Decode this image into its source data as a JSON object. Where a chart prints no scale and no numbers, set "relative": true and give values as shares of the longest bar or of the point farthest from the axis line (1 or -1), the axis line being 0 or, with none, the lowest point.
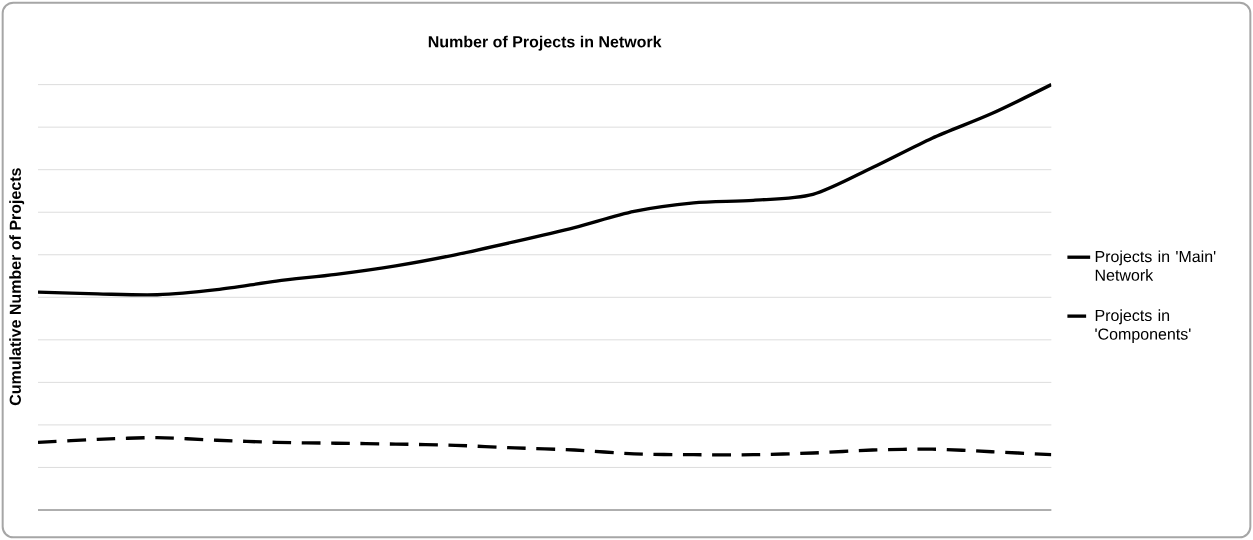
{
  "chart_data": {
    "type": "line",
    "title": "Number of Projects in Network",
    "ylabel": "Cumulative Number of Projects",
    "relative": true,
    "grid": "y",
    "legend": "right",
    "marker": "none",
    "categories": [
      null,
      null,
      null,
      null,
      null,
      null,
      null,
      null,
      null,
      null,
      null,
      null,
      null,
      null,
      null,
      null,
      null,
      null
    ],
    "series": [
      {
        "name": "Projects in 'Main' Network",
        "color": "#000000",
        "line_style": "solid",
        "values": [
          0.512,
          0.508,
          0.506,
          0.518,
          0.538,
          0.554,
          0.574,
          0.6,
          0.631,
          0.664,
          0.702,
          0.722,
          0.728,
          0.742,
          0.805,
          0.874,
          0.932,
          1
        ]
      },
      {
        "name": "Projects in 'Components'",
        "color": "#000000",
        "line_style": "dashed",
        "values": [
          0.159,
          0.166,
          0.17,
          0.164,
          0.159,
          0.157,
          0.155,
          0.152,
          0.146,
          0.141,
          0.132,
          0.13,
          0.13,
          0.134,
          0.141,
          0.143,
          0.137,
          0.13
        ]
      }
    ]
  }
}
